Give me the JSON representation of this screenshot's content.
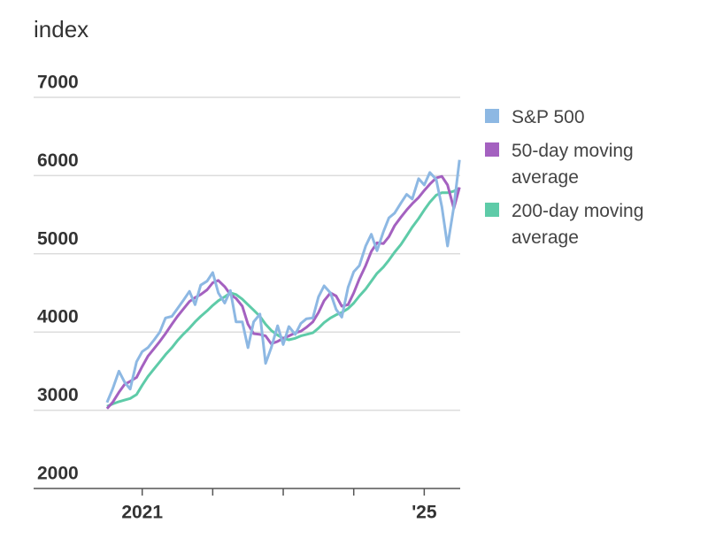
{
  "chart_data": {
    "type": "line",
    "y_label": "index",
    "x": [
      2020.5,
      2020.58,
      2020.67,
      2020.75,
      2020.83,
      2020.92,
      2021,
      2021.08,
      2021.17,
      2021.25,
      2021.33,
      2021.42,
      2021.5,
      2021.58,
      2021.67,
      2021.75,
      2021.83,
      2021.92,
      2022,
      2022.08,
      2022.17,
      2022.25,
      2022.33,
      2022.42,
      2022.5,
      2022.58,
      2022.67,
      2022.75,
      2022.83,
      2022.92,
      2023,
      2023.08,
      2023.17,
      2023.25,
      2023.33,
      2023.42,
      2023.5,
      2023.58,
      2023.67,
      2023.75,
      2023.83,
      2023.92,
      2024,
      2024.08,
      2024.17,
      2024.25,
      2024.33,
      2024.42,
      2024.5,
      2024.58,
      2024.67,
      2024.75,
      2024.83,
      2024.92,
      2025,
      2025.08,
      2025.17,
      2025.25,
      2025.33,
      2025.42,
      2025.5
    ],
    "series": [
      {
        "name": "S&P 500",
        "color": "#8db8e3",
        "values": [
          3100,
          3270,
          3500,
          3360,
          3270,
          3620,
          3750,
          3800,
          3900,
          4000,
          4180,
          4200,
          4300,
          4400,
          4520,
          4350,
          4600,
          4650,
          4760,
          4500,
          4370,
          4530,
          4130,
          4130,
          3800,
          4130,
          4230,
          3600,
          3800,
          4080,
          3840,
          4070,
          3970,
          4110,
          4170,
          4180,
          4450,
          4590,
          4500,
          4290,
          4190,
          4570,
          4770,
          4850,
          5100,
          5250,
          5040,
          5280,
          5460,
          5520,
          5650,
          5760,
          5700,
          5960,
          5880,
          6040,
          5950,
          5600,
          5100,
          5600,
          6200
        ]
      },
      {
        "name": "50-day moving average",
        "color": "#a461c0",
        "values": [
          3020,
          3100,
          3230,
          3330,
          3370,
          3420,
          3560,
          3690,
          3790,
          3880,
          3980,
          4100,
          4200,
          4290,
          4390,
          4440,
          4480,
          4540,
          4630,
          4660,
          4580,
          4480,
          4430,
          4330,
          4100,
          3980,
          3970,
          3950,
          3850,
          3880,
          3920,
          3950,
          3990,
          4010,
          4060,
          4130,
          4250,
          4400,
          4500,
          4460,
          4330,
          4350,
          4500,
          4680,
          4850,
          5030,
          5140,
          5130,
          5220,
          5360,
          5470,
          5560,
          5640,
          5720,
          5810,
          5890,
          5970,
          5990,
          5880,
          5580,
          5850
        ]
      },
      {
        "name": "200-day moving average",
        "color": "#5ecba8",
        "values": [
          3050,
          3080,
          3110,
          3130,
          3150,
          3200,
          3320,
          3430,
          3530,
          3620,
          3710,
          3800,
          3890,
          3970,
          4050,
          4130,
          4200,
          4270,
          4340,
          4400,
          4450,
          4500,
          4480,
          4420,
          4350,
          4280,
          4200,
          4100,
          4020,
          3960,
          3920,
          3900,
          3920,
          3950,
          3970,
          3990,
          4050,
          4120,
          4180,
          4220,
          4250,
          4300,
          4370,
          4460,
          4550,
          4650,
          4750,
          4830,
          4920,
          5020,
          5120,
          5230,
          5340,
          5450,
          5560,
          5660,
          5750,
          5780,
          5780,
          5800,
          5840
        ]
      }
    ],
    "xlim": [
      2019.46,
      2025.51
    ],
    "xticks": [
      {
        "value": 2021,
        "label": "2021"
      },
      2022,
      2023,
      2024,
      {
        "value": 2025,
        "label": "'25"
      }
    ],
    "xtick_labels_shown": [
      true,
      false,
      false,
      false,
      true
    ],
    "ylim": [
      2000,
      7000
    ],
    "yticks": [
      2000,
      3000,
      4000,
      5000,
      6000,
      7000
    ],
    "grid": true,
    "legend": "right"
  }
}
